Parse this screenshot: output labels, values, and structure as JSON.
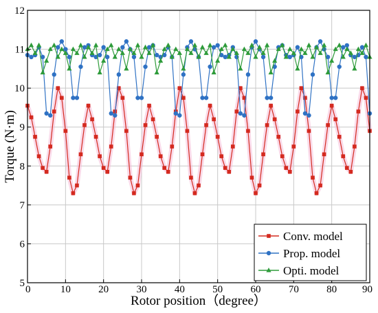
{
  "chart_data": {
    "type": "line",
    "xlabel": "Rotor position（degree）",
    "ylabel": "Torque (N·m)",
    "xlim": [
      0,
      90
    ],
    "ylim": [
      5,
      12
    ],
    "x_ticks": [
      "0",
      "10",
      "20",
      "30",
      "40",
      "50",
      "60",
      "70",
      "80",
      "90"
    ],
    "y_ticks": [
      "5",
      "6",
      "7",
      "8",
      "9",
      "10",
      "11",
      "12"
    ],
    "grid": true,
    "legend_position": "bottom-right",
    "series": [
      {
        "name": "Conv. model",
        "color": "#d42a1f",
        "marker": "square",
        "x": [
          0,
          1,
          2,
          3,
          4,
          5,
          6,
          7,
          8,
          9,
          10,
          11,
          12,
          13,
          14,
          15,
          16,
          17,
          18,
          19,
          20,
          21,
          22,
          23,
          24,
          25,
          26,
          27,
          28,
          29,
          30,
          31,
          32,
          33,
          34,
          35,
          36,
          37,
          38,
          39,
          40,
          41,
          42,
          43,
          44,
          45,
          46,
          47,
          48,
          49,
          50,
          51,
          52,
          53,
          54,
          55,
          56,
          57,
          58,
          59,
          60,
          61,
          62,
          63,
          64,
          65,
          66,
          67,
          68,
          69,
          70,
          71,
          72,
          73,
          74,
          75,
          76,
          77,
          78,
          79,
          80,
          81,
          82,
          83,
          84,
          85,
          86,
          87,
          88,
          89,
          90
        ],
        "values": [
          9.55,
          9.25,
          8.75,
          8.25,
          7.95,
          7.85,
          8.5,
          9.4,
          10.0,
          9.75,
          8.9,
          7.7,
          7.3,
          7.5,
          8.3,
          9.05,
          9.55,
          9.2,
          8.75,
          8.25,
          7.95,
          7.85,
          8.5,
          9.4,
          10.0,
          9.75,
          8.9,
          7.7,
          7.3,
          7.5,
          8.3,
          9.05,
          9.55,
          9.2,
          8.75,
          8.25,
          7.95,
          7.85,
          8.5,
          9.4,
          10.0,
          9.75,
          8.9,
          7.7,
          7.3,
          7.5,
          8.3,
          9.05,
          9.55,
          9.2,
          8.75,
          8.25,
          7.95,
          7.85,
          8.5,
          9.4,
          10.0,
          9.75,
          8.9,
          7.7,
          7.3,
          7.5,
          8.3,
          9.05,
          9.55,
          9.2,
          8.75,
          8.25,
          7.95,
          7.85,
          8.5,
          9.4,
          10.0,
          9.75,
          8.9,
          7.7,
          7.3,
          7.5,
          8.3,
          9.05,
          9.55,
          9.2,
          8.75,
          8.25,
          7.95,
          7.85,
          8.5,
          9.4,
          10.0,
          9.75,
          8.9
        ]
      },
      {
        "name": "Prop. model",
        "color": "#2f72c4",
        "marker": "circle",
        "x": [
          0,
          1,
          2,
          3,
          4,
          5,
          6,
          7,
          8,
          9,
          10,
          11,
          12,
          13,
          14,
          15,
          16,
          17,
          18,
          19,
          20,
          21,
          22,
          23,
          24,
          25,
          26,
          27,
          28,
          29,
          30,
          31,
          32,
          33,
          34,
          35,
          36,
          37,
          38,
          39,
          40,
          41,
          42,
          43,
          44,
          45,
          46,
          47,
          48,
          49,
          50,
          51,
          52,
          53,
          54,
          55,
          56,
          57,
          58,
          59,
          60,
          61,
          62,
          63,
          64,
          65,
          66,
          67,
          68,
          69,
          70,
          71,
          72,
          73,
          74,
          75,
          76,
          77,
          78,
          79,
          80,
          81,
          82,
          83,
          84,
          85,
          86,
          87,
          88,
          89,
          90
        ],
        "values": [
          10.85,
          10.8,
          10.85,
          11.05,
          10.8,
          9.35,
          9.3,
          10.35,
          11.05,
          11.2,
          11.0,
          10.8,
          9.75,
          9.75,
          10.55,
          11.05,
          11.1,
          10.85,
          10.8,
          10.85,
          11.05,
          10.8,
          9.35,
          9.3,
          10.35,
          11.05,
          11.2,
          11.0,
          10.8,
          9.75,
          9.75,
          10.55,
          11.05,
          11.1,
          10.85,
          10.8,
          10.85,
          11.05,
          10.8,
          9.35,
          9.3,
          10.35,
          11.05,
          11.2,
          11.0,
          10.8,
          9.75,
          9.75,
          10.55,
          11.05,
          11.1,
          10.85,
          10.8,
          10.85,
          11.05,
          10.8,
          9.35,
          9.3,
          10.35,
          11.05,
          11.2,
          11.0,
          10.8,
          9.75,
          9.75,
          10.55,
          11.05,
          11.1,
          10.85,
          10.8,
          10.85,
          11.05,
          10.8,
          9.35,
          9.3,
          10.35,
          11.05,
          11.2,
          11.0,
          10.8,
          9.75,
          9.75,
          10.55,
          11.05,
          11.1,
          10.85,
          10.8,
          10.85,
          11.05,
          10.8,
          9.35
        ]
      },
      {
        "name": "Opti. model",
        "color": "#2e9b3a",
        "marker": "triangle",
        "x": [
          0,
          1,
          2,
          3,
          4,
          5,
          6,
          7,
          8,
          9,
          10,
          11,
          12,
          13,
          14,
          15,
          16,
          17,
          18,
          19,
          20,
          21,
          22,
          23,
          24,
          25,
          26,
          27,
          28,
          29,
          30,
          31,
          32,
          33,
          34,
          35,
          36,
          37,
          38,
          39,
          40,
          41,
          42,
          43,
          44,
          45,
          46,
          47,
          48,
          49,
          50,
          51,
          52,
          53,
          54,
          55,
          56,
          57,
          58,
          59,
          60,
          61,
          62,
          63,
          64,
          65,
          66,
          67,
          68,
          69,
          70,
          71,
          72,
          73,
          74,
          75,
          76,
          77,
          78,
          79,
          80,
          81,
          82,
          83,
          84,
          85,
          86,
          87,
          88,
          89,
          90
        ],
        "values": [
          11.0,
          11.1,
          10.9,
          11.1,
          10.4,
          10.7,
          11.0,
          11.1,
          10.8,
          11.0,
          10.9,
          10.5,
          11.0,
          10.9,
          11.1,
          10.8,
          11.05,
          10.9,
          11.1,
          10.4,
          10.7,
          11.0,
          11.1,
          10.8,
          11.0,
          10.9,
          10.5,
          11.0,
          10.9,
          11.1,
          10.8,
          11.05,
          10.9,
          11.1,
          10.4,
          10.7,
          11.0,
          11.1,
          10.8,
          11.0,
          10.9,
          10.5,
          11.0,
          10.9,
          11.1,
          10.8,
          11.05,
          10.9,
          11.1,
          10.4,
          10.7,
          11.0,
          11.1,
          10.8,
          11.0,
          10.9,
          10.5,
          11.0,
          10.9,
          11.1,
          10.8,
          11.05,
          10.9,
          11.1,
          10.4,
          10.7,
          11.0,
          11.1,
          10.8,
          11.0,
          10.9,
          10.5,
          11.0,
          10.9,
          11.1,
          10.8,
          11.05,
          10.9,
          11.1,
          10.4,
          10.7,
          11.0,
          11.1,
          10.8,
          11.0,
          10.9,
          10.5,
          11.0,
          10.9,
          11.1,
          10.8
        ]
      }
    ]
  }
}
